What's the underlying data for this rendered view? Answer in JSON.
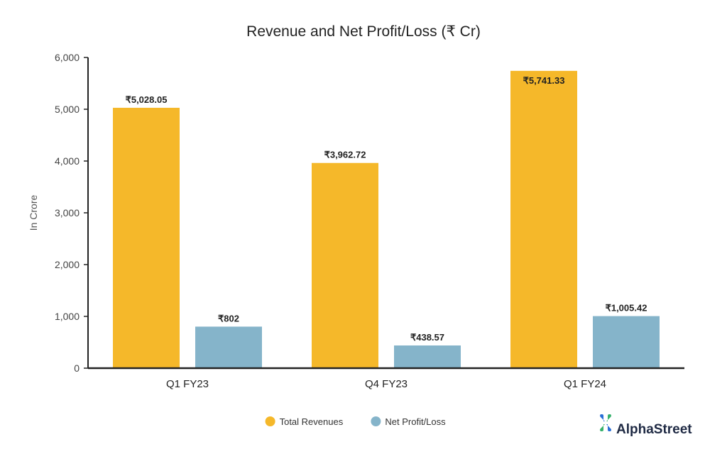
{
  "chart_data": {
    "type": "bar",
    "title": "Revenue and Net Profit/Loss (₹ Cr)",
    "xlabel": "",
    "ylabel": "In Crore",
    "ylim": [
      0,
      6000
    ],
    "yticks": [
      0,
      1000,
      2000,
      3000,
      4000,
      5000,
      6000
    ],
    "ytick_labels": [
      "0",
      "1,000",
      "2,000",
      "3,000",
      "4,000",
      "5,000",
      "6,000"
    ],
    "categories": [
      "Q1 FY23",
      "Q4 FY23",
      "Q1 FY24"
    ],
    "grid": false,
    "legend_position": "bottom-center",
    "series": [
      {
        "name": "Total Revenues",
        "color": "#F5B82A",
        "values": [
          5028.05,
          3962.72,
          5741.33
        ],
        "labels": [
          "₹5,028.05",
          "₹3,962.72",
          "₹5,741.33"
        ]
      },
      {
        "name": "Net Profit/Loss",
        "color": "#85B4CA",
        "values": [
          802,
          438.57,
          1005.42
        ],
        "labels": [
          "₹802",
          "₹438.57",
          "₹1,005.42"
        ]
      }
    ]
  },
  "brand": {
    "name": "AlphaStreet",
    "icon": "alphastreet-logo-icon",
    "icon_color": "#2a6fd6"
  }
}
